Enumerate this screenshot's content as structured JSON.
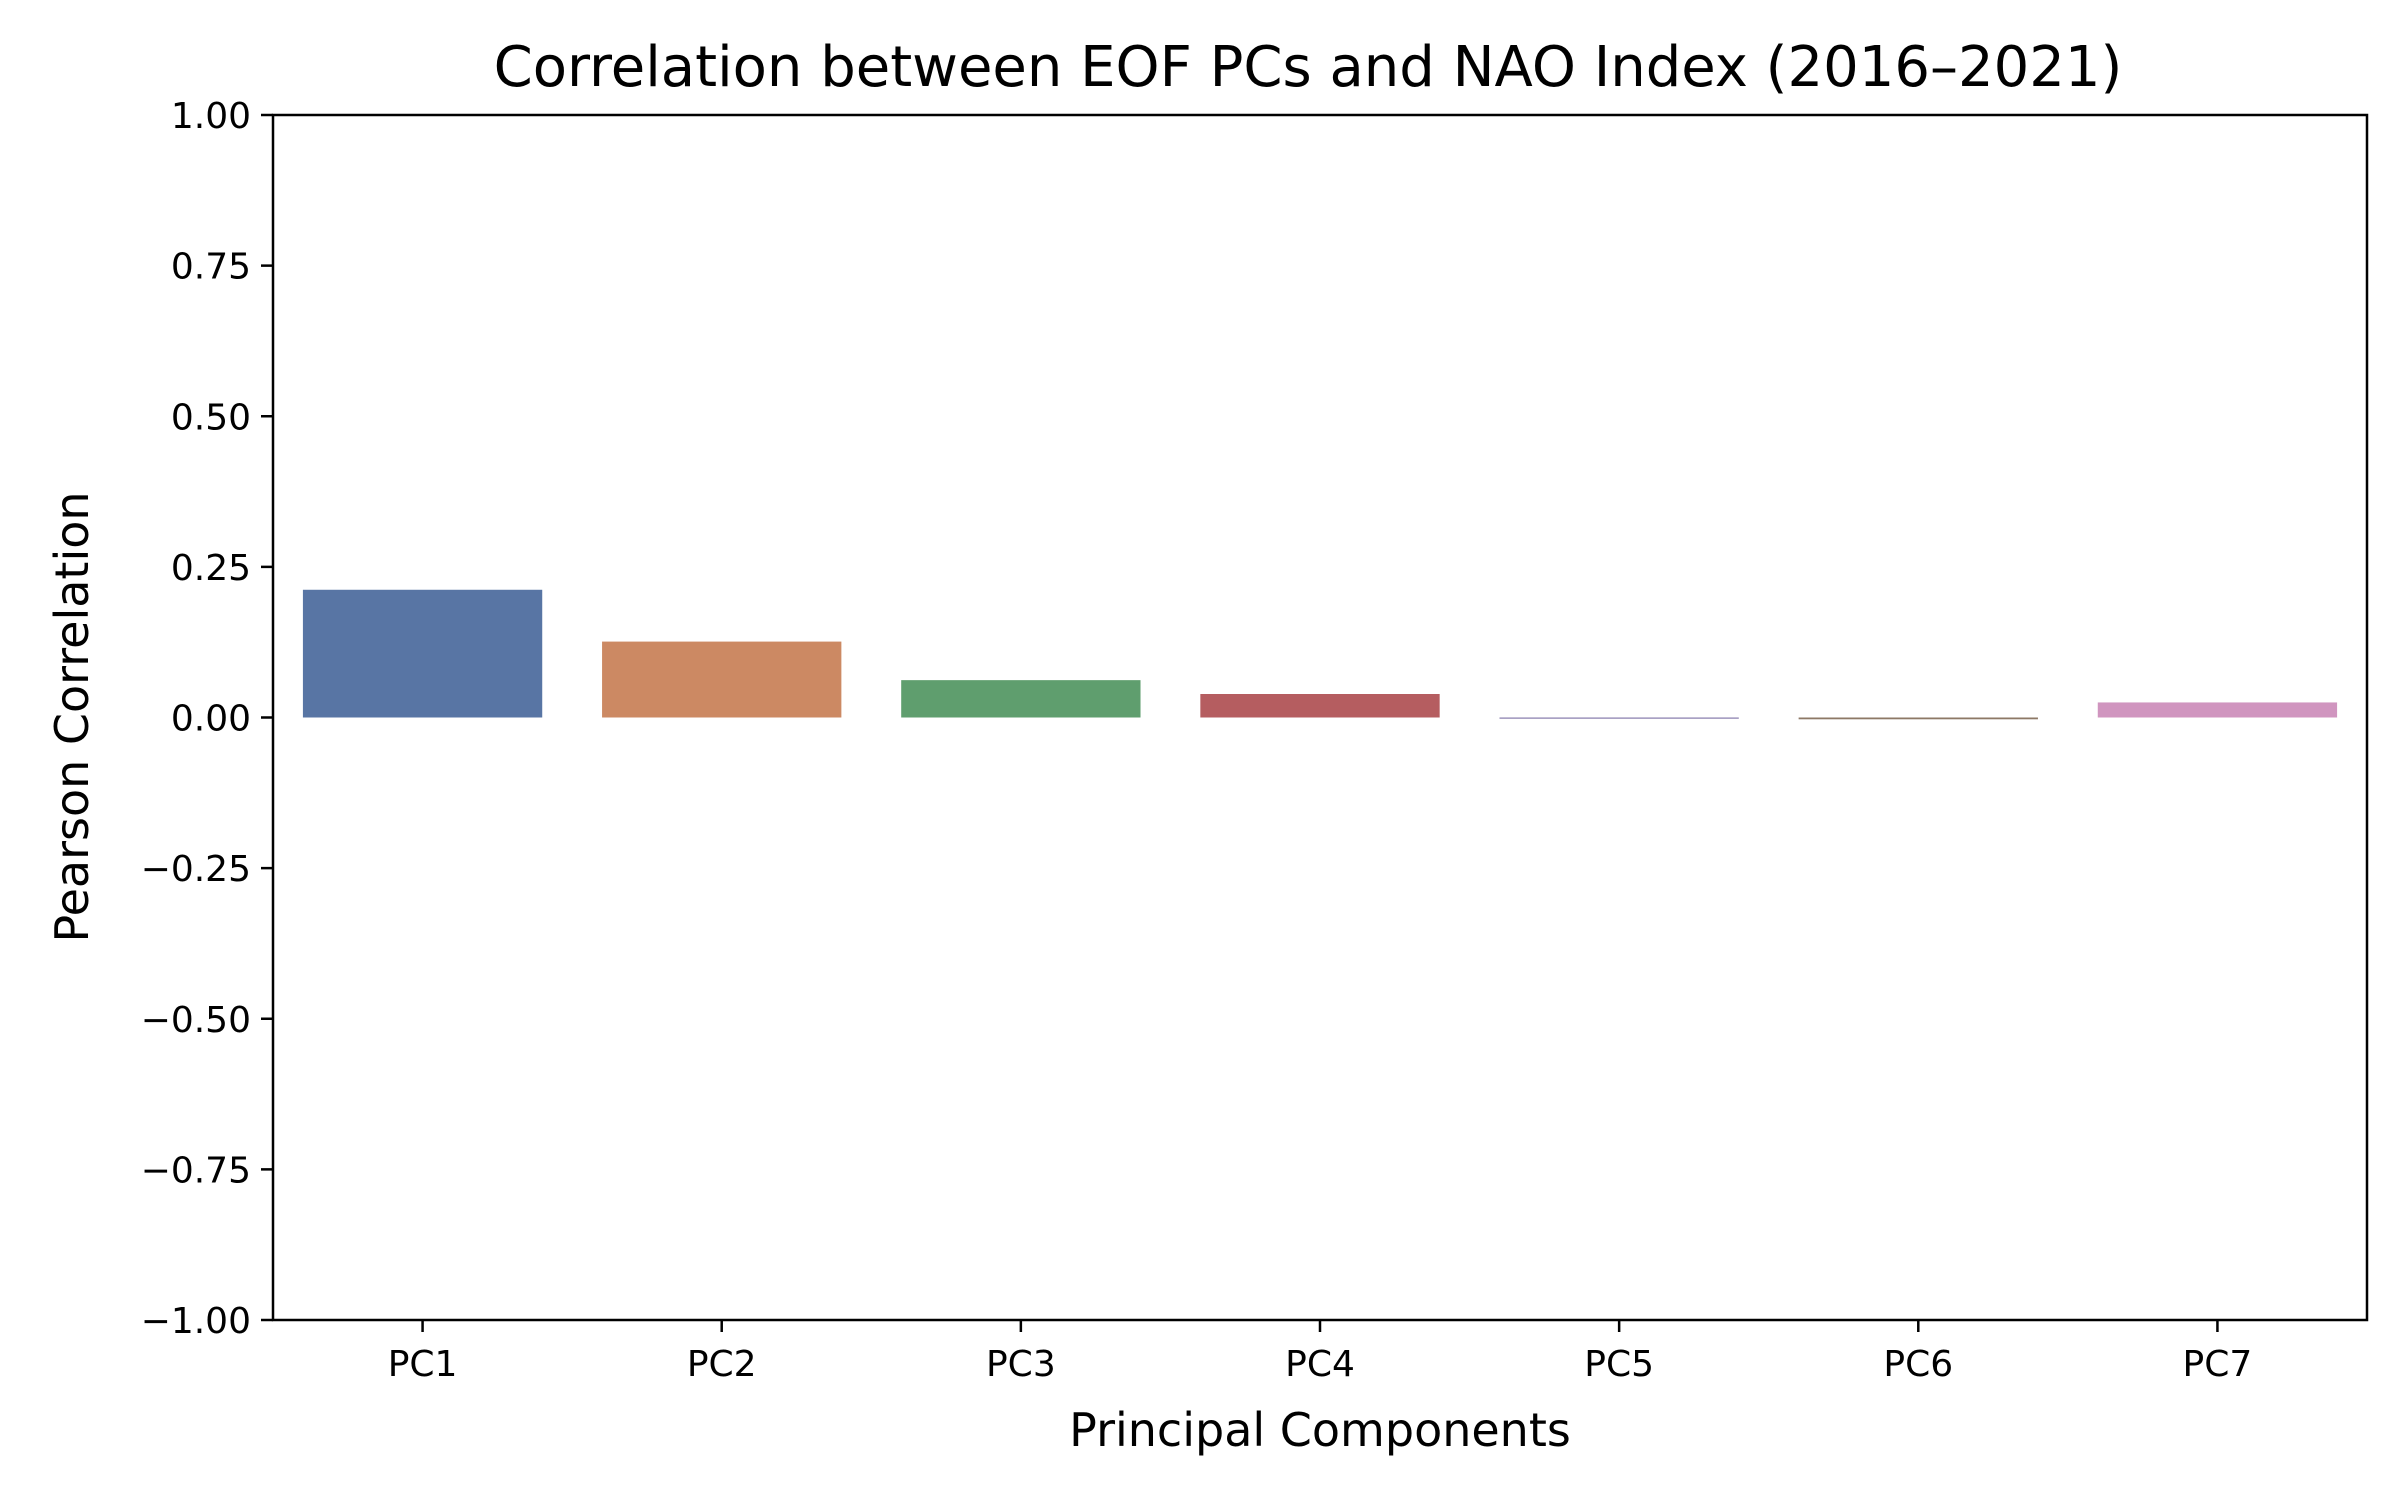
{
  "chart_data": {
    "type": "bar",
    "title": "Correlation between EOF PCs and NAO Index (2016–2021)",
    "xlabel": "Principal Components",
    "ylabel": "Pearson Correlation",
    "categories": [
      "PC1",
      "PC2",
      "PC3",
      "PC4",
      "PC5",
      "PC6",
      "PC7"
    ],
    "values": [
      0.212,
      0.126,
      0.062,
      0.039,
      -0.002,
      -0.003,
      0.025
    ],
    "colors": [
      "#5875a4",
      "#cc8963",
      "#5f9e6e",
      "#b55d60",
      "#857aab",
      "#8d7866",
      "#d095bf"
    ],
    "ylim": [
      -1.0,
      1.0
    ],
    "yticks": [
      1.0,
      0.75,
      0.5,
      0.25,
      0.0,
      -0.25,
      -0.5,
      -0.75,
      -1.0
    ],
    "ytick_labels": [
      "1.00",
      "0.75",
      "0.50",
      "0.25",
      "0.00",
      "−0.25",
      "−0.50",
      "−0.75",
      "−1.00"
    ],
    "grid": false,
    "legend": "none"
  }
}
